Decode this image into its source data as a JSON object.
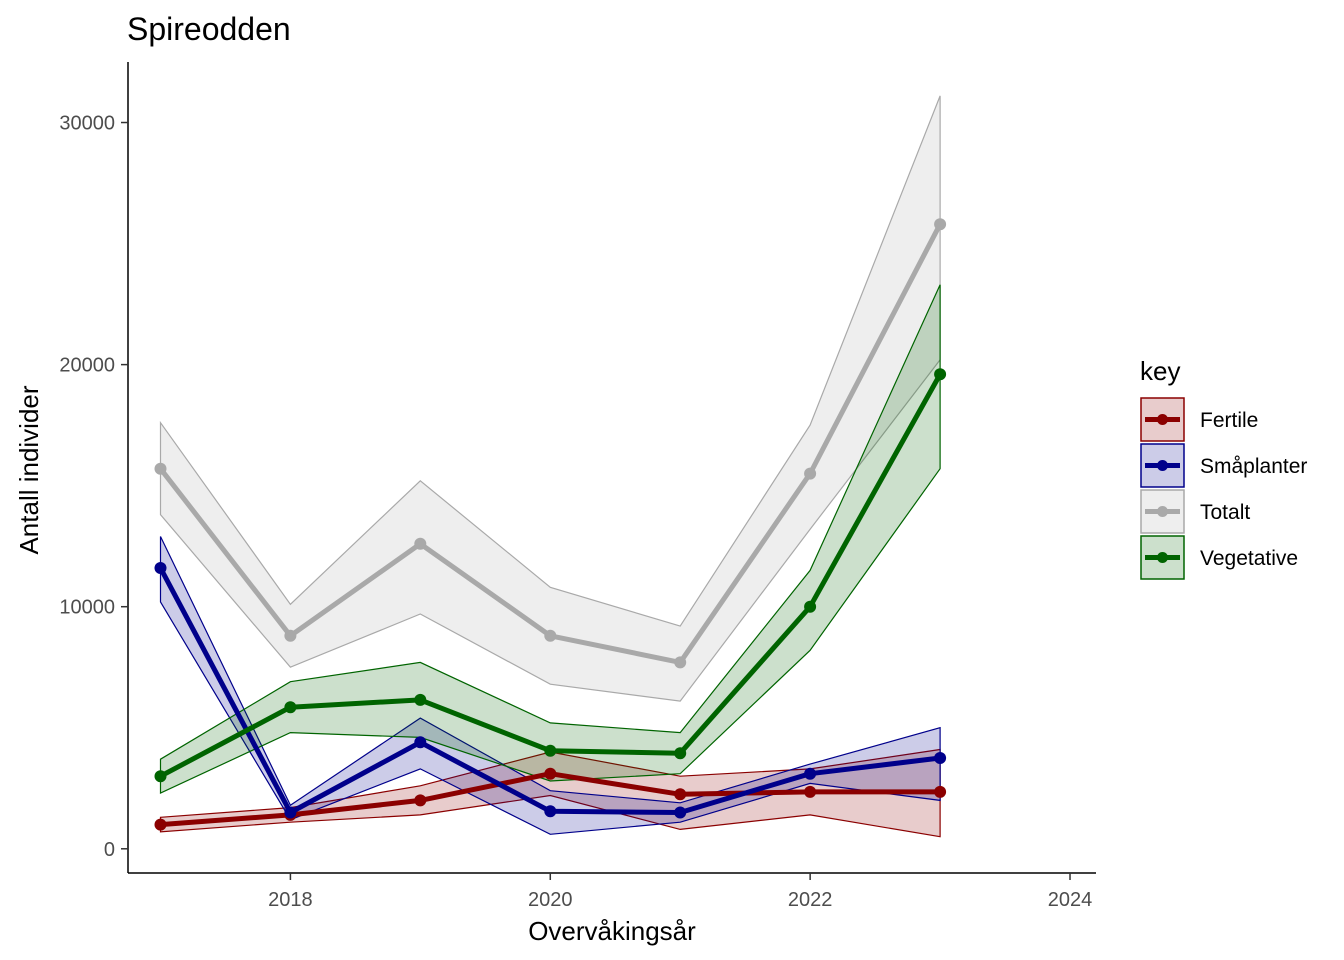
{
  "chart_data": {
    "type": "line",
    "title": "Spireodden",
    "xlabel": "Overvåkingsår",
    "ylabel": "Antall individer",
    "x": [
      2017,
      2018,
      2019,
      2020,
      2021,
      2022,
      2023
    ],
    "xlim": [
      2016.75,
      2024.2
    ],
    "ylim": [
      -1000,
      32500
    ],
    "x_ticks": [
      2018,
      2020,
      2022,
      2024
    ],
    "y_ticks": [
      0,
      10000,
      20000,
      30000
    ],
    "grid": false,
    "legend_title": "key",
    "legend_position": "right",
    "series": [
      {
        "name": "Fertile",
        "color": "#8B0000",
        "values": [
          1000,
          1400,
          2000,
          3100,
          2250,
          2350,
          2350
        ],
        "lower": [
          700,
          1100,
          1400,
          2200,
          800,
          1400,
          500
        ],
        "upper": [
          1300,
          1700,
          2600,
          4000,
          3000,
          3300,
          4100
        ]
      },
      {
        "name": "Småplanter",
        "color": "#00008B",
        "values": [
          11600,
          1500,
          4400,
          1550,
          1500,
          3100,
          3750
        ],
        "lower": [
          10200,
          1200,
          3300,
          600,
          1100,
          2700,
          2000
        ],
        "upper": [
          12900,
          1800,
          5400,
          2400,
          1900,
          3500,
          5000
        ]
      },
      {
        "name": "Totalt",
        "color": "#A9A9A9",
        "values": [
          15700,
          8800,
          12600,
          8800,
          7700,
          15500,
          25800
        ],
        "lower": [
          13800,
          7500,
          9700,
          6800,
          6100,
          13200,
          20200
        ],
        "upper": [
          17600,
          10100,
          15200,
          10800,
          9200,
          17500,
          31100
        ]
      },
      {
        "name": "Vegetative",
        "color": "#006400",
        "values": [
          3000,
          5850,
          6150,
          4050,
          3950,
          10000,
          19600
        ],
        "lower": [
          2300,
          4800,
          4600,
          2800,
          3100,
          8200,
          15700
        ],
        "upper": [
          3700,
          6900,
          7700,
          5200,
          4800,
          11500,
          23300
        ]
      }
    ]
  }
}
